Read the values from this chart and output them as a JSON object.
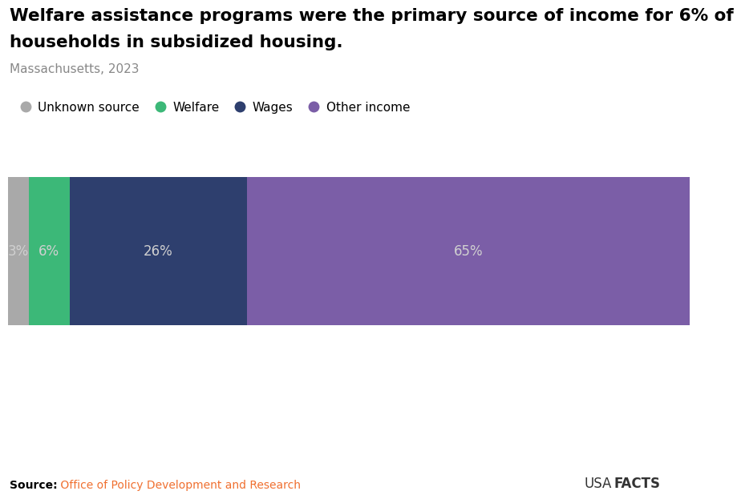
{
  "title_line1": "Welfare assistance programs were the primary source of income for 6% of",
  "title_line2": "households in subsidized housing.",
  "subtitle": "Massachusetts, 2023",
  "categories": [
    "Unknown source",
    "Welfare",
    "Wages",
    "Other income"
  ],
  "values": [
    3,
    6,
    26,
    65
  ],
  "colors": [
    "#a9a9a9",
    "#3cb878",
    "#2e3f6e",
    "#7b5ea7"
  ],
  "labels": [
    "3%",
    "6%",
    "26%",
    "65%"
  ],
  "label_color": "#d0d0d0",
  "source_bold": "Source:",
  "source_text": " Office of Policy Development and Research",
  "source_color": "#f07030",
  "branding_usa": "USA",
  "branding_facts": "FACTS",
  "background_color": "#ffffff",
  "title_fontsize": 15.5,
  "subtitle_fontsize": 11,
  "legend_fontsize": 11,
  "label_fontsize": 12
}
